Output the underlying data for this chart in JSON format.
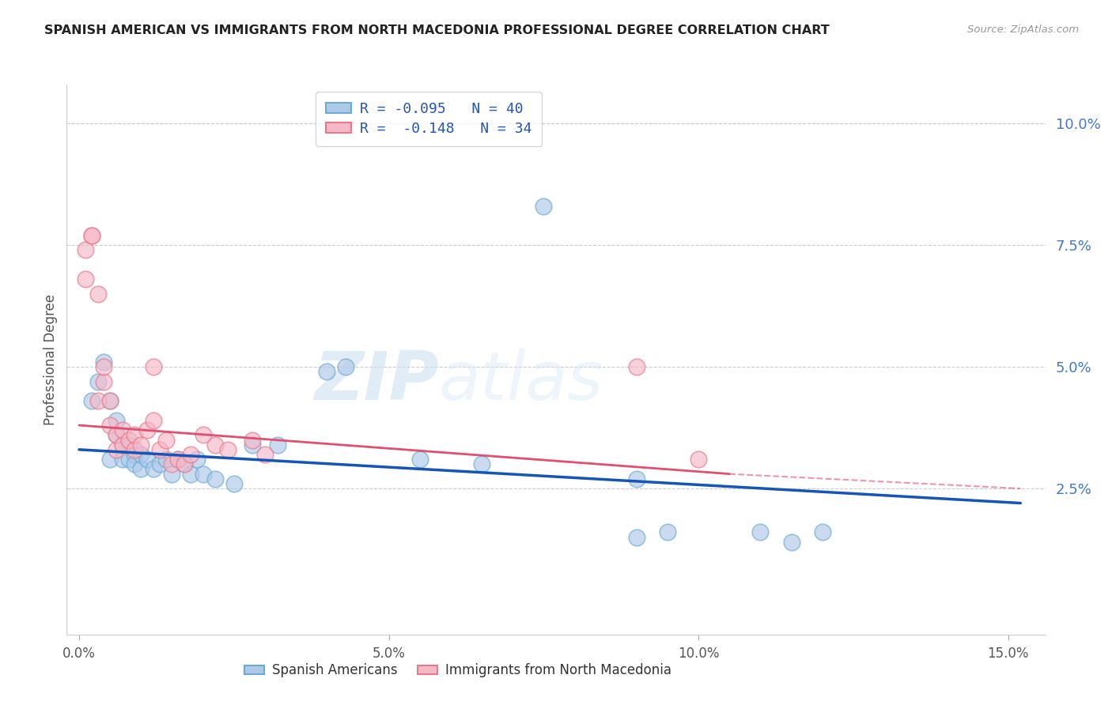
{
  "title": "SPANISH AMERICAN VS IMMIGRANTS FROM NORTH MACEDONIA PROFESSIONAL DEGREE CORRELATION CHART",
  "source": "Source: ZipAtlas.com",
  "ylabel": "Professional Degree",
  "x_ticks": [
    0.0,
    0.05,
    0.1,
    0.15
  ],
  "x_tick_labels": [
    "0.0%",
    "5.0%",
    "10.0%",
    "15.0%"
  ],
  "y_ticks_right": [
    0.025,
    0.05,
    0.075,
    0.1
  ],
  "y_tick_labels_right": [
    "2.5%",
    "5.0%",
    "7.5%",
    "10.0%"
  ],
  "xlim": [
    -0.002,
    0.156
  ],
  "ylim": [
    -0.005,
    0.108
  ],
  "legend_entries": [
    {
      "label": "R = -0.095   N = 40"
    },
    {
      "label": "R =  -0.148   N = 34"
    }
  ],
  "legend_labels_bottom": [
    "Spanish Americans",
    "Immigrants from North Macedonia"
  ],
  "blue_fill_color": "#aec9e8",
  "pink_fill_color": "#f5b8c8",
  "blue_edge_color": "#6aaad4",
  "pink_edge_color": "#e8788a",
  "blue_line_color": "#1555b5",
  "pink_line_color": "#e05070",
  "watermark_zip": "ZIP",
  "watermark_atlas": "atlas",
  "background_color": "#ffffff",
  "grid_color": "#cccccc",
  "blue_scatter_x": [
    0.002,
    0.003,
    0.004,
    0.005,
    0.005,
    0.006,
    0.006,
    0.007,
    0.007,
    0.008,
    0.008,
    0.009,
    0.009,
    0.01,
    0.01,
    0.011,
    0.012,
    0.013,
    0.014,
    0.015,
    0.016,
    0.017,
    0.018,
    0.019,
    0.02,
    0.022,
    0.025,
    0.028,
    0.032,
    0.04,
    0.043,
    0.055,
    0.065,
    0.09,
    0.09,
    0.095,
    0.11,
    0.115,
    0.12,
    0.075
  ],
  "blue_scatter_y": [
    0.043,
    0.047,
    0.051,
    0.031,
    0.043,
    0.036,
    0.039,
    0.031,
    0.034,
    0.031,
    0.034,
    0.032,
    0.03,
    0.029,
    0.032,
    0.031,
    0.029,
    0.03,
    0.031,
    0.028,
    0.031,
    0.03,
    0.028,
    0.031,
    0.028,
    0.027,
    0.026,
    0.034,
    0.034,
    0.049,
    0.05,
    0.031,
    0.03,
    0.027,
    0.015,
    0.016,
    0.016,
    0.014,
    0.016,
    0.083
  ],
  "pink_scatter_x": [
    0.001,
    0.001,
    0.002,
    0.002,
    0.003,
    0.003,
    0.004,
    0.004,
    0.005,
    0.005,
    0.006,
    0.006,
    0.007,
    0.007,
    0.008,
    0.009,
    0.009,
    0.01,
    0.011,
    0.012,
    0.012,
    0.013,
    0.014,
    0.015,
    0.016,
    0.017,
    0.018,
    0.02,
    0.022,
    0.024,
    0.028,
    0.03,
    0.09,
    0.1
  ],
  "pink_scatter_y": [
    0.068,
    0.074,
    0.077,
    0.077,
    0.065,
    0.043,
    0.047,
    0.05,
    0.038,
    0.043,
    0.033,
    0.036,
    0.034,
    0.037,
    0.035,
    0.033,
    0.036,
    0.034,
    0.037,
    0.039,
    0.05,
    0.033,
    0.035,
    0.03,
    0.031,
    0.03,
    0.032,
    0.036,
    0.034,
    0.033,
    0.035,
    0.032,
    0.05,
    0.031
  ],
  "blue_line_x": [
    0.0,
    0.152
  ],
  "blue_line_y": [
    0.033,
    0.022
  ],
  "pink_line_x": [
    0.0,
    0.105
  ],
  "pink_line_y": [
    0.038,
    0.028
  ]
}
